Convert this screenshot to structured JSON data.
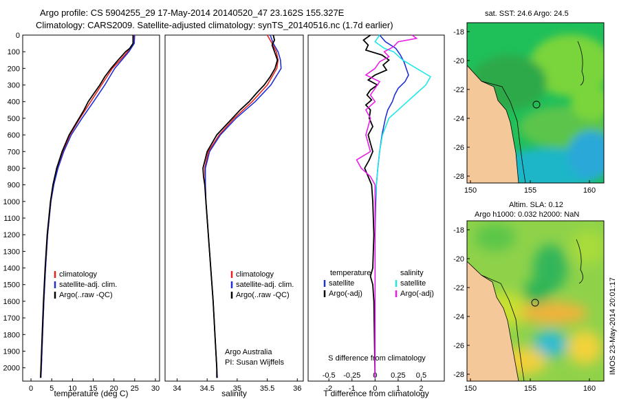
{
  "header": {
    "line1": "Argo profile: CS 5904255_29 17-May-2014 20140520_47 23.162S 155.327E",
    "line2": "Climatology: CARS2009. Satellite-adjusted climatology: synTS_20140516.nc (1.7d earlier)"
  },
  "maps": {
    "sst_title": "sat. SST: 24.6  Argo: 24.5",
    "sla_title1": "Altim. SLA: 0.12",
    "sla_title2": "Argo h1000: 0.032  h2000: NaN",
    "stamp": "IMOS 23-May-2014 20:01:17",
    "lon_ticks": [
      "150",
      "155",
      "160"
    ],
    "lat_ticks": [
      "-18",
      "-20",
      "-22",
      "-24",
      "-26",
      "-28"
    ]
  },
  "colors": {
    "climatology": "#e8211b",
    "satellite": "#1e2fd6",
    "argo": "#000000",
    "sat_salinity": "#1ee8e8",
    "argo_salinity": "#e81ee8",
    "land": "#f5c89a"
  },
  "chart_data": [
    {
      "type": "line",
      "name": "temperature-profile",
      "xlabel": "temperature (deg C)",
      "ylabel": "",
      "xlim": [
        -2,
        31
      ],
      "ylim": [
        2080,
        0
      ],
      "xticks": [
        "0",
        "5",
        "10",
        "15",
        "20",
        "25",
        "30"
      ],
      "yticks": [
        "0",
        "100",
        "200",
        "300",
        "400",
        "500",
        "600",
        "700",
        "800",
        "900",
        "1000",
        "1100",
        "1200",
        "1300",
        "1400",
        "1500",
        "1600",
        "1700",
        "1800",
        "1900",
        "2000"
      ],
      "legend": [
        "climatology",
        "satellite-adj. clim.",
        "Argo(..raw -QC)"
      ],
      "series": [
        {
          "name": "climatology",
          "depth": [
            0,
            50,
            100,
            150,
            200,
            300,
            400,
            500,
            600,
            700,
            800,
            900,
            1000,
            1200,
            1400,
            1600,
            1800,
            2000,
            2060
          ],
          "values": [
            24.8,
            24.6,
            23.3,
            21.5,
            19.6,
            17.0,
            14.4,
            11.8,
            9.4,
            7.7,
            6.4,
            5.5,
            4.8,
            4.0,
            3.5,
            3.1,
            2.8,
            2.5,
            2.4
          ]
        },
        {
          "name": "satellite-adj. clim.",
          "depth": [
            0,
            50,
            100,
            150,
            200,
            300,
            400,
            500,
            600,
            700,
            800,
            900,
            1000,
            1200,
            1400,
            1600,
            1800,
            2000,
            2060
          ],
          "values": [
            25.0,
            24.9,
            23.6,
            21.9,
            20.2,
            17.8,
            15.1,
            12.3,
            9.7,
            7.9,
            6.5,
            5.5,
            4.8,
            4.0,
            3.5,
            3.1,
            2.8,
            2.5,
            2.4
          ]
        },
        {
          "name": "Argo(..raw -QC)",
          "depth": [
            0,
            50,
            80,
            100,
            150,
            200,
            250,
            300,
            350,
            400,
            450,
            500,
            600,
            700,
            800,
            900,
            1000,
            1200,
            1400,
            1600,
            1800,
            2000,
            2060
          ],
          "values": [
            24.6,
            24.6,
            23.8,
            22.8,
            21.0,
            19.3,
            17.8,
            16.6,
            15.2,
            13.8,
            12.8,
            11.6,
            9.2,
            7.5,
            6.2,
            5.3,
            4.7,
            3.9,
            3.4,
            3.0,
            2.7,
            2.4,
            2.3
          ]
        }
      ]
    },
    {
      "type": "line",
      "name": "salinity-profile",
      "xlabel": "salinity",
      "xlim": [
        33.8,
        36.1
      ],
      "ylim": [
        2080,
        0
      ],
      "xticks": [
        "34",
        "34.5",
        "35",
        "35.5",
        "36"
      ],
      "legend": [
        "climatology",
        "satellite-adj. clim.",
        "Argo(..raw -QC)"
      ],
      "credit": [
        "Argo Australia",
        "PI: Susan Wijffels"
      ],
      "series": [
        {
          "name": "climatology",
          "depth": [
            0,
            50,
            100,
            150,
            200,
            300,
            400,
            500,
            600,
            700,
            800,
            900,
            1000,
            1200,
            1400,
            1600,
            1800,
            2000,
            2060
          ],
          "values": [
            35.5,
            35.58,
            35.65,
            35.68,
            35.66,
            35.5,
            35.25,
            34.95,
            34.7,
            34.52,
            34.46,
            34.47,
            34.48,
            34.52,
            34.56,
            34.6,
            34.63,
            34.66,
            34.67
          ]
        },
        {
          "name": "satellite-adj. clim.",
          "depth": [
            0,
            50,
            100,
            150,
            200,
            300,
            400,
            500,
            600,
            700,
            800,
            900,
            1000,
            1200,
            1400,
            1600,
            1800,
            2000,
            2060
          ],
          "values": [
            35.55,
            35.6,
            35.68,
            35.72,
            35.73,
            35.56,
            35.3,
            34.98,
            34.72,
            34.54,
            34.47,
            34.47,
            34.48,
            34.52,
            34.56,
            34.6,
            34.63,
            34.66,
            34.67
          ]
        },
        {
          "name": "Argo(..raw -QC)",
          "depth": [
            0,
            30,
            60,
            100,
            150,
            200,
            250,
            300,
            350,
            400,
            450,
            500,
            600,
            700,
            800,
            850,
            900,
            1000,
            1200,
            1400,
            1600,
            1800,
            2000,
            2060
          ],
          "values": [
            35.6,
            35.62,
            35.58,
            35.62,
            35.67,
            35.63,
            35.55,
            35.45,
            35.32,
            35.2,
            35.05,
            34.92,
            34.66,
            34.5,
            34.43,
            34.44,
            34.46,
            34.48,
            34.52,
            34.56,
            34.6,
            34.63,
            34.66,
            34.66
          ]
        }
      ]
    },
    {
      "type": "line",
      "name": "difference-profile",
      "xlabel": "T difference from climatology",
      "xlabel_top": "S difference from climatology",
      "xlim": [
        -2.9,
        3.0
      ],
      "ylim": [
        2080,
        0
      ],
      "xticks": [
        "-2",
        "-1",
        "0",
        "1",
        "2"
      ],
      "xticks_salinity": [
        "-0.5",
        "-0.25",
        "0",
        "0.25",
        "0.5"
      ],
      "legend_temperature": [
        "temperature",
        "satellite",
        "Argo(-adj)"
      ],
      "legend_salinity": [
        "salinity",
        "satellite",
        "Argo(-adj)"
      ],
      "series": [
        {
          "name": "temperature satellite",
          "depth": [
            0,
            40,
            80,
            120,
            160,
            200,
            240,
            280,
            320,
            360,
            400,
            450,
            500,
            600,
            700,
            800,
            900,
            1000,
            1200,
            1500,
            2060
          ],
          "values": [
            0.2,
            0.45,
            0.9,
            1.1,
            1.25,
            1.35,
            1.45,
            1.3,
            1.0,
            0.85,
            0.75,
            0.55,
            0.45,
            0.3,
            0.2,
            0.12,
            0.06,
            0.03,
            0.0,
            0.0,
            0.0
          ]
        },
        {
          "name": "temperature Argo(-adj)",
          "depth": [
            0,
            30,
            60,
            90,
            120,
            150,
            180,
            210,
            240,
            270,
            300,
            330,
            360,
            390,
            420,
            450,
            500,
            550,
            600,
            650,
            700,
            750,
            800,
            850,
            900,
            1000,
            1200,
            1400,
            1450,
            1500,
            1600,
            2060
          ],
          "values": [
            -0.2,
            -0.5,
            -0.3,
            -0.4,
            0.3,
            0.6,
            0.35,
            0.5,
            0.0,
            -0.3,
            0.1,
            -0.2,
            -0.35,
            -0.15,
            -0.4,
            -0.2,
            -0.25,
            -0.1,
            -0.3,
            -0.2,
            -0.1,
            -0.25,
            -0.45,
            -0.3,
            -0.15,
            -0.1,
            -0.05,
            -0.1,
            -0.2,
            -0.1,
            -0.05,
            0.0
          ]
        },
        {
          "name": "salinity satellite",
          "depth": [
            0,
            40,
            80,
            100,
            150,
            200,
            250,
            300,
            350,
            400,
            450,
            500,
            600,
            700,
            800,
            1000,
            1200,
            2060
          ],
          "values": [
            0.05,
            0.0,
            0.1,
            0.2,
            0.3,
            0.45,
            0.6,
            0.55,
            0.45,
            0.35,
            0.25,
            0.15,
            0.08,
            0.05,
            0.03,
            0.0,
            0.0,
            0.0
          ]
        },
        {
          "name": "salinity Argo(-adj)",
          "depth": [
            0,
            20,
            40,
            70,
            100,
            130,
            160,
            200,
            240,
            280,
            320,
            360,
            400,
            450,
            500,
            600,
            700,
            750,
            800,
            850,
            900,
            1000,
            1200,
            2060
          ],
          "values": [
            0.4,
            0.45,
            0.25,
            0.2,
            0.1,
            0.15,
            0.05,
            0.0,
            -0.1,
            0.05,
            0.0,
            -0.05,
            0.0,
            -0.1,
            -0.05,
            -0.1,
            -0.05,
            -0.2,
            -0.15,
            -0.05,
            0.0,
            0.0,
            0.0,
            0.0
          ]
        }
      ]
    }
  ]
}
